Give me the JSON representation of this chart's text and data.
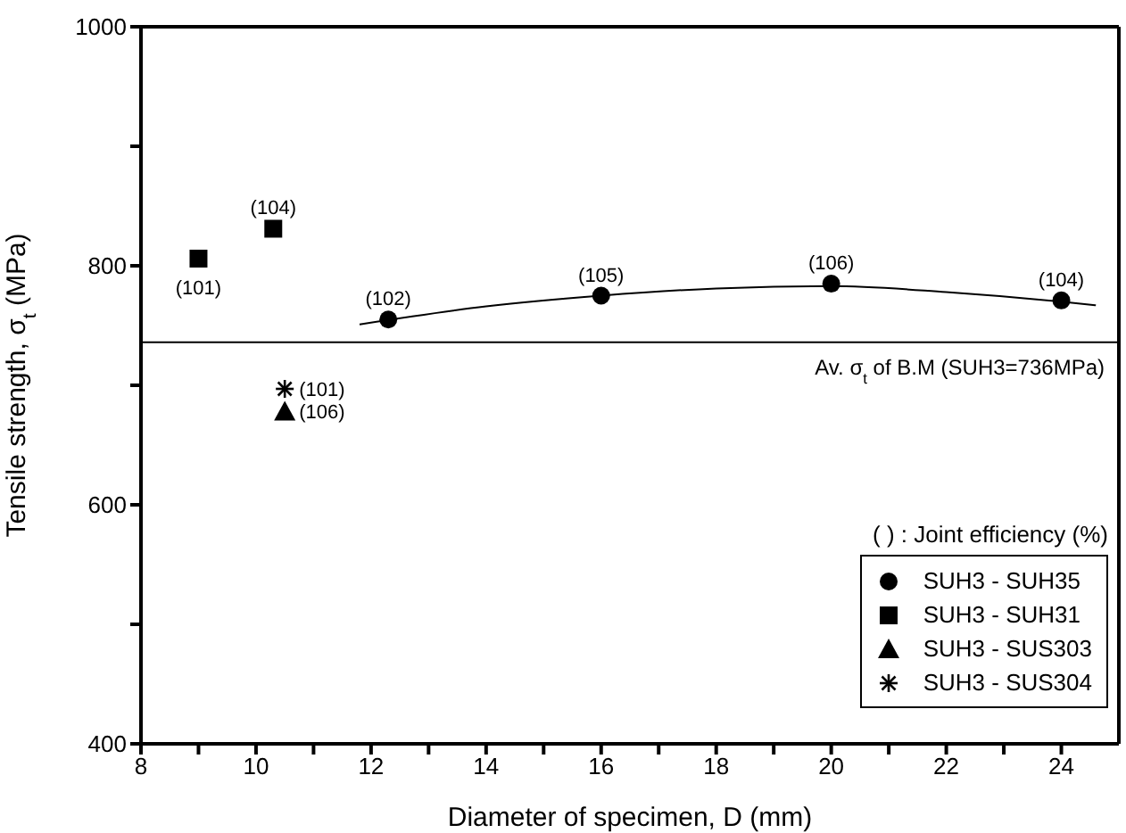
{
  "chart_data": {
    "type": "scatter",
    "xlabel": "Diameter of specimen, D (mm)",
    "ylabel": "Tensile strength,  σ$_{t}$ (MPa)",
    "legend_title": "(  ) : Joint efficiency (%)",
    "xlim": [
      8,
      25
    ],
    "xticks": [
      8,
      {
        "value": 9,
        "label": null
      },
      10,
      {
        "value": 11,
        "label": null
      },
      12,
      {
        "value": 13,
        "label": null
      },
      14,
      {
        "value": 15,
        "label": null
      },
      16,
      {
        "value": 17,
        "label": null
      },
      18,
      {
        "value": 19,
        "label": null
      },
      20,
      {
        "value": 21,
        "label": null
      },
      22,
      {
        "value": 23,
        "label": null
      },
      24
    ],
    "ylim": [
      400,
      1000
    ],
    "yticks": [
      400,
      {
        "value": 500,
        "label": null
      },
      600,
      {
        "value": 700,
        "label": null
      },
      800,
      {
        "value": 900,
        "label": null
      },
      1000
    ],
    "grid": false,
    "legend": "bottom right",
    "series": [
      {
        "name": "SUH3 - SUH35",
        "marker": "circle",
        "color": "#000000",
        "x": [
          12.3,
          16,
          20,
          24
        ],
        "values": [
          755,
          775,
          785,
          771
        ]
      },
      {
        "name": "SUH3 - SUH31",
        "marker": "square",
        "color": "#000000",
        "x": [
          9,
          10.3
        ],
        "values": [
          806,
          831
        ]
      },
      {
        "name": "SUH3 - SUS303",
        "marker": "triangle",
        "color": "#000000",
        "x": [
          10.5
        ],
        "values": [
          678
        ]
      },
      {
        "name": "SUH3 - SUS304",
        "marker": "cross",
        "color": "#000000",
        "x": [
          10.5
        ],
        "values": [
          697
        ]
      },
      {
        "type": "line",
        "marker": "none",
        "line_style": "solid",
        "color": "#000000",
        "x": [
          11.8,
          14,
          16,
          18,
          20,
          22,
          24,
          24.6
        ],
        "values": [
          751,
          766,
          775,
          781,
          783,
          778,
          770,
          767
        ]
      }
    ],
    "ref_lines": [
      {
        "axis": "y",
        "value": 736,
        "label": "Av. σ$_{t}$ of B.M (SUH3=736MPa)",
        "color": "#000000"
      }
    ],
    "annotations": [
      {
        "text": "(101)",
        "x": 9,
        "y": 806
      },
      {
        "text": "(104)",
        "x": 10.3,
        "y": 831
      },
      {
        "text": "(102)",
        "x": 12.3,
        "y": 755
      },
      {
        "text": "(105)",
        "x": 16,
        "y": 775
      },
      {
        "text": "(106)",
        "x": 20,
        "y": 785
      },
      {
        "text": "(104)",
        "x": 24,
        "y": 771
      },
      {
        "text": "(106)",
        "x": 10.5,
        "y": 678
      },
      {
        "text": "(101)",
        "x": 10.5,
        "y": 697
      }
    ]
  }
}
